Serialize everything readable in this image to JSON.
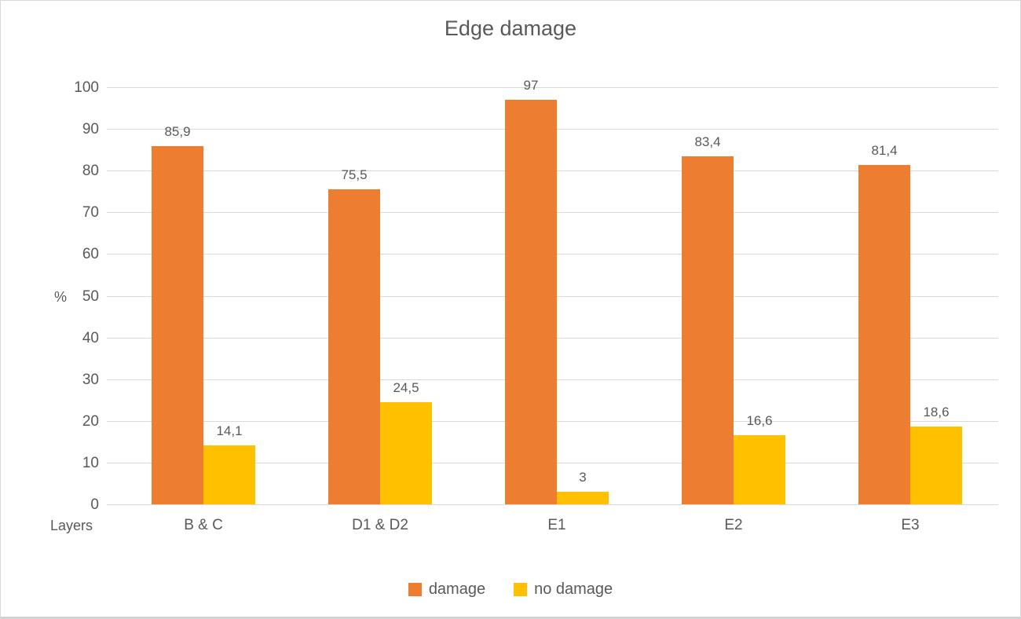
{
  "chart_data": {
    "type": "bar",
    "title": "Edge damage",
    "xlabel": "Layers",
    "ylabel": "%",
    "ylim": [
      0,
      100
    ],
    "y_ticks": [
      0,
      10,
      20,
      30,
      40,
      50,
      60,
      70,
      80,
      90,
      100
    ],
    "grid": true,
    "legend_position": "bottom",
    "categories": [
      "B & C",
      "D1 & D2",
      "E1",
      "E2",
      "E3"
    ],
    "series": [
      {
        "name": "damage",
        "color": "#ED7D31",
        "values": [
          85.9,
          75.5,
          97,
          83.4,
          81.4
        ],
        "labels": [
          "85,9",
          "75,5",
          "97",
          "83,4",
          "81,4"
        ]
      },
      {
        "name": "no damage",
        "color": "#FFC000",
        "values": [
          14.1,
          24.5,
          3,
          16.6,
          18.6
        ],
        "labels": [
          "14,1",
          "24,5",
          "3",
          "16,6",
          "18,6"
        ]
      }
    ],
    "colors": {
      "text": "#595959",
      "gridline": "#D9D9D9"
    }
  }
}
